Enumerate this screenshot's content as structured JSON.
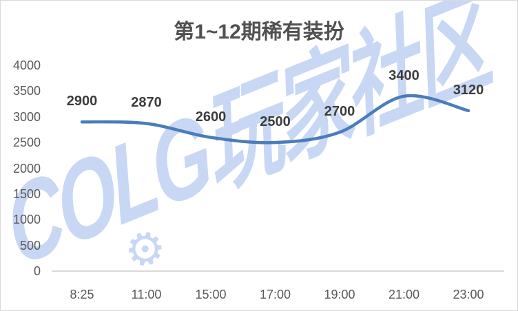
{
  "title": "第1~12期稀有装扮",
  "watermark": {
    "text": "COLG玩家社区",
    "gear_glyph": "⚙",
    "color": "#c8d7f4"
  },
  "colors": {
    "background": "#ffffff",
    "border": "#d9d9d9",
    "axis_line": "#d9d9d9",
    "axis_labels": "#595959",
    "data_labels": "#3c3c3c",
    "title_text": "#515151",
    "line": "#4a7cba"
  },
  "chart_data": {
    "type": "line",
    "title": "第1~12期稀有装扮",
    "categories": [
      "8:25",
      "11:00",
      "15:00",
      "17:00",
      "19:00",
      "21:00",
      "23:00"
    ],
    "values": [
      2900,
      2870,
      2600,
      2500,
      2700,
      3400,
      3120
    ],
    "yticks": [
      0,
      500,
      1000,
      1500,
      2000,
      2500,
      3000,
      3500,
      4000
    ],
    "ylim": [
      0,
      4000
    ],
    "xlabel": "",
    "ylabel": "",
    "grid": false,
    "legend": "none",
    "smooth": true,
    "data_labels": true,
    "line_color": "#4a7cba"
  }
}
